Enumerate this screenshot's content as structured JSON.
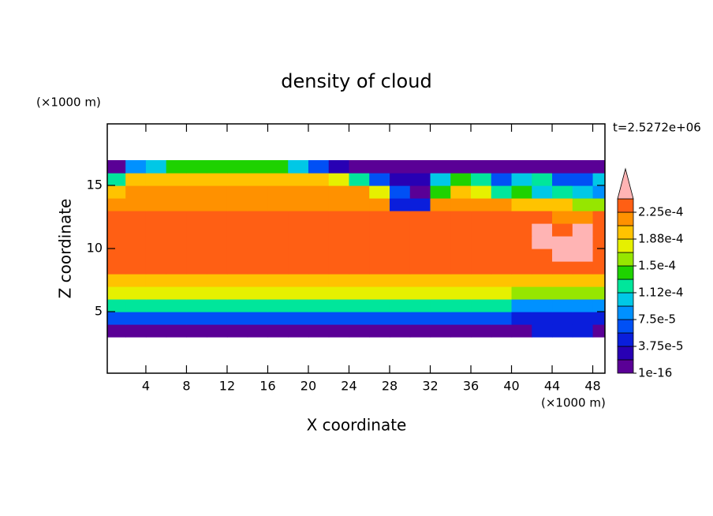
{
  "chart_data": {
    "type": "contour",
    "title": "density of cloud",
    "xlabel": "X coordinate",
    "ylabel": "Z coordinate",
    "xunit": "(×1000 m)",
    "yunit": "(×1000 m)",
    "annotation": "t=2.5272e+06",
    "xlim": [
      0.2,
      49.2
    ],
    "ylim": [
      0.125,
      19.875
    ],
    "xticks": [
      4,
      8,
      12,
      16,
      20,
      24,
      28,
      32,
      36,
      40,
      44,
      48
    ],
    "yticks": [
      5,
      10,
      15
    ],
    "x": [
      1,
      3,
      5,
      7,
      9,
      11,
      13,
      15,
      17,
      19,
      21,
      23,
      25,
      27,
      29,
      31,
      33,
      35,
      37,
      39,
      41,
      43,
      45,
      47,
      49
    ],
    "y": [
      3.5,
      4.5,
      5.5,
      6.5,
      7.5,
      8.5,
      9.5,
      10.5,
      11.5,
      12.5,
      13.5,
      14.5,
      15.5,
      16.5
    ],
    "z": [
      [
        1e-05,
        1e-05,
        1e-05,
        1e-05,
        1e-05,
        1e-05,
        1e-05,
        1e-05,
        1e-05,
        1e-05,
        1e-05,
        1e-05,
        1e-05,
        1e-05,
        1e-05,
        1e-05,
        1e-05,
        1e-05,
        1e-05,
        1e-05,
        1e-05,
        5e-05,
        5e-05,
        5e-05,
        1e-05
      ],
      [
        6e-05,
        6e-05,
        6e-05,
        6e-05,
        6e-05,
        6e-05,
        6e-05,
        6e-05,
        6e-05,
        6e-05,
        6e-05,
        6e-05,
        6e-05,
        6e-05,
        6e-05,
        6e-05,
        6e-05,
        6e-05,
        6e-05,
        6e-05,
        4e-05,
        4e-05,
        4e-05,
        4e-05,
        4e-05
      ],
      [
        0.00013,
        0.00013,
        0.00013,
        0.00013,
        0.00013,
        0.00013,
        0.00013,
        0.00013,
        0.00013,
        0.00013,
        0.00013,
        0.00013,
        0.00013,
        0.00013,
        0.00013,
        0.00013,
        0.00013,
        0.00013,
        0.00013,
        0.00013,
        9e-05,
        9e-05,
        9e-05,
        9e-05,
        9e-05
      ],
      [
        0.00018,
        0.00018,
        0.00018,
        0.00018,
        0.00018,
        0.00018,
        0.00018,
        0.00018,
        0.00018,
        0.00018,
        0.00018,
        0.00018,
        0.00018,
        0.00018,
        0.00018,
        0.00018,
        0.00018,
        0.00018,
        0.00018,
        0.00018,
        0.00015,
        0.00015,
        0.00015,
        0.00015,
        0.00015
      ],
      [
        0.000205,
        0.000205,
        0.000205,
        0.000205,
        0.000205,
        0.000205,
        0.000205,
        0.000205,
        0.000205,
        0.000205,
        0.000205,
        0.000205,
        0.000205,
        0.000205,
        0.000205,
        0.000205,
        0.000205,
        0.000205,
        0.000205,
        0.000205,
        0.000205,
        0.000205,
        0.000205,
        0.000205,
        0.000205
      ],
      [
        0.00023,
        0.00023,
        0.00023,
        0.00023,
        0.00023,
        0.00023,
        0.00023,
        0.00023,
        0.00023,
        0.00023,
        0.00023,
        0.00023,
        0.00023,
        0.00023,
        0.00023,
        0.00023,
        0.00023,
        0.00023,
        0.00023,
        0.00023,
        0.00023,
        0.00023,
        0.00023,
        0.00023,
        0.00023
      ],
      [
        0.000235,
        0.000235,
        0.000235,
        0.000235,
        0.000235,
        0.000235,
        0.000235,
        0.000235,
        0.000235,
        0.000235,
        0.000235,
        0.000235,
        0.000235,
        0.000235,
        0.000235,
        0.000235,
        0.000235,
        0.000235,
        0.000235,
        0.000235,
        0.000235,
        0.000235,
        0.00025,
        0.00025,
        0.000235
      ],
      [
        0.000235,
        0.000235,
        0.000235,
        0.000235,
        0.000235,
        0.000235,
        0.000235,
        0.000235,
        0.000235,
        0.000235,
        0.000235,
        0.000235,
        0.000235,
        0.000235,
        0.000235,
        0.000235,
        0.000235,
        0.000235,
        0.000235,
        0.000235,
        0.000235,
        0.00025,
        0.00025,
        0.00025,
        0.000235
      ],
      [
        0.00023,
        0.00023,
        0.00023,
        0.00023,
        0.00023,
        0.00023,
        0.00023,
        0.00023,
        0.00023,
        0.00023,
        0.00023,
        0.00023,
        0.00023,
        0.00023,
        0.00023,
        0.00023,
        0.00023,
        0.00023,
        0.00023,
        0.00023,
        0.00023,
        0.00025,
        0.00023,
        0.00025,
        0.00023
      ],
      [
        0.00023,
        0.00023,
        0.00023,
        0.00023,
        0.00023,
        0.00023,
        0.00023,
        0.00023,
        0.00023,
        0.00023,
        0.00023,
        0.00023,
        0.00023,
        0.00023,
        0.00023,
        0.00023,
        0.00023,
        0.00023,
        0.00023,
        0.00023,
        0.00023,
        0.00023,
        0.00021,
        0.00021,
        0.00023
      ],
      [
        0.00022,
        0.00022,
        0.00022,
        0.00022,
        0.00022,
        0.00022,
        0.00022,
        0.00022,
        0.00022,
        0.00022,
        0.00022,
        0.00022,
        0.00022,
        0.00022,
        5e-05,
        5e-05,
        0.00021,
        0.00021,
        0.00021,
        0.00021,
        0.00019,
        0.00019,
        0.00019,
        0.00016,
        0.00016
      ],
      [
        0.00019,
        0.00021,
        0.00021,
        0.00021,
        0.00021,
        0.00021,
        0.00021,
        0.00021,
        0.00021,
        0.00021,
        0.00021,
        0.00021,
        0.00021,
        0.00017,
        7e-05,
        1e-05,
        0.00014,
        0.00019,
        0.00017,
        0.00012,
        0.00014,
        0.00011,
        0.00013,
        0.00011,
        9e-05
      ],
      [
        0.00013,
        0.00019,
        0.000205,
        0.000205,
        0.000205,
        0.000205,
        0.000205,
        0.000205,
        0.000205,
        0.000205,
        0.0002,
        0.00018,
        0.00013,
        6e-05,
        3e-05,
        2e-05,
        0.0001,
        0.00014,
        0.00012,
        6e-05,
        0.0001,
        0.00012,
        7e-05,
        6e-05,
        0.0001
      ],
      [
        1e-05,
        8e-05,
        0.00011,
        0.00014,
        0.00014,
        0.00014,
        0.00014,
        0.00014,
        0.00014,
        0.00011,
        7e-05,
        3e-05,
        1e-05,
        1e-05,
        1e-05,
        1e-05,
        1e-05,
        1e-05,
        1e-05,
        1e-05,
        1e-05,
        1e-05,
        1e-05,
        1e-05,
        1e-05
      ]
    ],
    "levels": [
      1e-16,
      1.875e-05,
      3.75e-05,
      5.625e-05,
      7.5e-05,
      9.375e-05,
      0.0001125,
      0.00013125,
      0.00015,
      0.00016875,
      0.0001875,
      0.00020625,
      0.000225,
      0.00024375
    ],
    "colors": [
      "#5a0096",
      "#2800b4",
      "#0a1edc",
      "#0050f5",
      "#0091ff",
      "#00c8e6",
      "#00e69b",
      "#1ed200",
      "#96e600",
      "#e6f000",
      "#ffc300",
      "#ff9100",
      "#ff5f14",
      "#ff3228"
    ],
    "extend_color": "#ffb4b4",
    "colorbar_ticks": [
      {
        "value": 1e-16,
        "label": "1e-16"
      },
      {
        "value": 3.75e-05,
        "label": "3.75e-5"
      },
      {
        "value": 7.5e-05,
        "label": "7.5e-5"
      },
      {
        "value": 0.0001125,
        "label": "1.12e-4"
      },
      {
        "value": 0.00015,
        "label": "1.5e-4"
      },
      {
        "value": 0.0001875,
        "label": "1.88e-4"
      },
      {
        "value": 0.000225,
        "label": "2.25e-4"
      }
    ]
  }
}
